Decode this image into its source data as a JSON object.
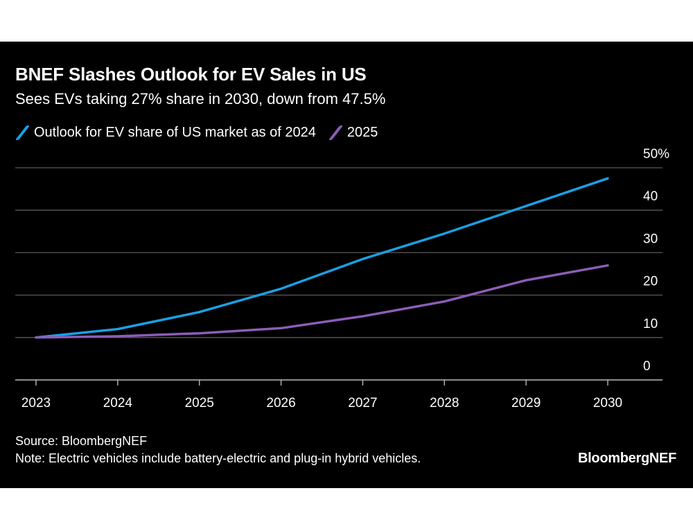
{
  "header": {
    "title": "BNEF Slashes Outlook for EV Sales in US",
    "subtitle": "Sees EVs taking 27% share in 2030, down from 47.5%"
  },
  "legend": {
    "items": [
      {
        "label": "Outlook for EV share of US market as of 2024",
        "color": "#1b9fe3"
      },
      {
        "label": "2025",
        "color": "#8c5db6"
      }
    ]
  },
  "footer": {
    "source": "Source: BloombergNEF",
    "note": "Note: Electric vehicles include battery-electric and plug-in hybrid vehicles.",
    "brand": "BloombergNEF"
  },
  "colors": {
    "background": "#000000",
    "grid": "#5a5a5a",
    "axis": "#bbbbbb",
    "text": "#ffffff"
  },
  "chart_data": {
    "type": "line",
    "title": "BNEF Slashes Outlook for EV Sales in US",
    "subtitle": "Sees EVs taking 27% share in 2030, down from 47.5%",
    "x": [
      2023,
      2024,
      2025,
      2026,
      2027,
      2028,
      2029,
      2030
    ],
    "series": [
      {
        "name": "Outlook for EV share of US market as of 2024",
        "color": "#1b9fe3",
        "values": [
          10,
          12,
          16,
          21.5,
          28.5,
          34.5,
          41,
          47.5
        ]
      },
      {
        "name": "2025",
        "color": "#8c5db6",
        "values": [
          10,
          10.3,
          11,
          12.2,
          15,
          18.5,
          23.5,
          27
        ]
      }
    ],
    "ylim": [
      0,
      50
    ],
    "yticks": [
      0,
      10,
      20,
      30,
      40,
      50
    ],
    "ytick_labels": [
      "0",
      "10",
      "20",
      "30",
      "40",
      "50%"
    ],
    "xtick_labels": [
      "2023",
      "2024",
      "2025",
      "2026",
      "2027",
      "2028",
      "2029",
      "2030"
    ],
    "xlabel": "",
    "ylabel": "",
    "yaxis_position": "right",
    "grid": true
  }
}
